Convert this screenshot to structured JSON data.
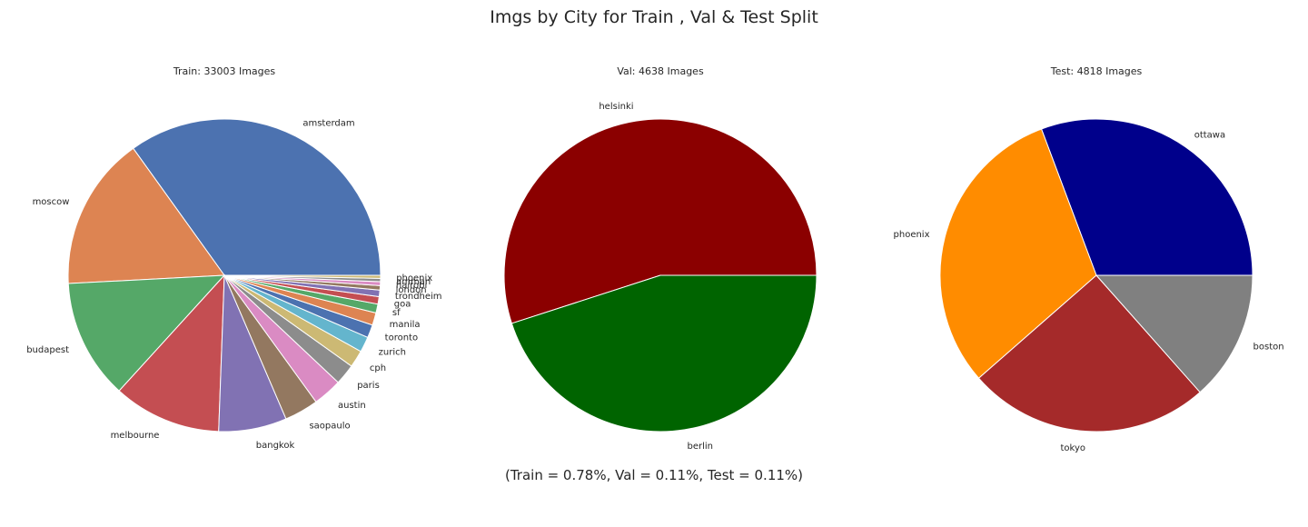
{
  "title": "Imgs by City for Train , Val & Test Split",
  "footer": "(Train = 0.78%, Val = 0.11%, Test = 0.11%)",
  "chart_data": [
    {
      "type": "pie",
      "title": "Train: 33003 Images",
      "labels": [
        "amsterdam",
        "moscow",
        "budapest",
        "melbourne",
        "bangkok",
        "saopaulo",
        "austin",
        "paris",
        "cph",
        "zurich",
        "toronto",
        "manila",
        "sf",
        "goa",
        "trondheim",
        "london",
        "nairobi",
        "amman",
        "phoenix"
      ],
      "values": [
        11400,
        5200,
        4050,
        3650,
        2300,
        1150,
        980,
        700,
        580,
        520,
        440,
        420,
        300,
        250,
        220,
        150,
        130,
        110,
        103
      ],
      "colors": [
        "#4c72b0",
        "#dd8452",
        "#55a868",
        "#c44e52",
        "#8172b3",
        "#937860",
        "#da8bc3",
        "#8c8c8c",
        "#ccb974",
        "#64b5cd",
        "#4c72b0",
        "#dd8452",
        "#55a868",
        "#c44e52",
        "#8172b3",
        "#937860",
        "#da8bc3",
        "#8c8c8c",
        "#ccb974"
      ]
    },
    {
      "type": "pie",
      "title": "Val: 4638 Images",
      "labels": [
        "helsinki",
        "berlin"
      ],
      "values": [
        2550,
        2088
      ],
      "colors": [
        "#8b0000",
        "#006400"
      ]
    },
    {
      "type": "pie",
      "title": "Test: 4818 Images",
      "labels": [
        "ottawa",
        "phoenix",
        "tokyo",
        "boston"
      ],
      "values": [
        1480,
        1480,
        1210,
        648
      ],
      "colors": [
        "#00008b",
        "#ff8c00",
        "#a52a2a",
        "#808080"
      ]
    }
  ]
}
